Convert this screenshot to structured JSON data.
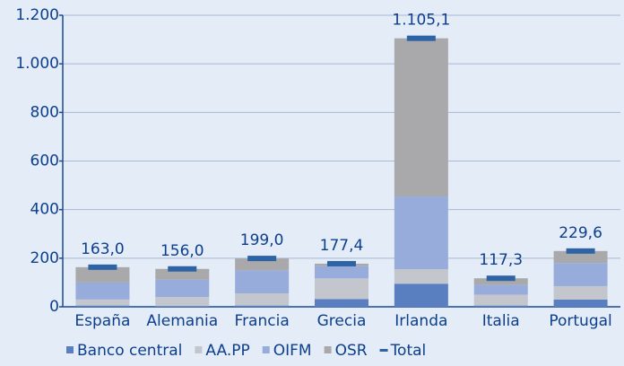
{
  "chart_data": {
    "type": "bar",
    "stacked": true,
    "categories": [
      "España",
      "Alemania",
      "Francia",
      "Grecia",
      "Irlanda",
      "Italia",
      "Portugal"
    ],
    "series": [
      {
        "name": "Banco central",
        "color": "#5a7fc0",
        "values": [
          5,
          3,
          5,
          32,
          95,
          5,
          30
        ]
      },
      {
        "name": "AA.PP",
        "color": "#c3c6cc",
        "values": [
          25,
          37,
          50,
          85,
          60,
          45,
          55
        ]
      },
      {
        "name": "OIFM",
        "color": "#98acdc",
        "values": [
          70,
          72,
          95,
          50,
          299,
          40,
          95
        ]
      },
      {
        "name": "OSR",
        "color": "#a9a9ab",
        "values": [
          63,
          44,
          49,
          10.4,
          651.1,
          27.3,
          49.6
        ]
      },
      {
        "name": "Total",
        "color": "#2e63a6",
        "style": "dash",
        "values": [
          163.0,
          156.0,
          199.0,
          177.4,
          1105.1,
          117.3,
          229.6
        ],
        "value_labels": [
          "163,0",
          "156,0",
          "199,0",
          "177,4",
          "1.105,1",
          "117,3",
          "229,6"
        ]
      }
    ],
    "ylim": [
      0,
      1200
    ],
    "yticks": [
      0,
      200,
      400,
      600,
      800,
      {
        "value": 1000,
        "label": "1.000"
      },
      {
        "value": 1200,
        "label": "1.200"
      }
    ],
    "grid": true
  }
}
